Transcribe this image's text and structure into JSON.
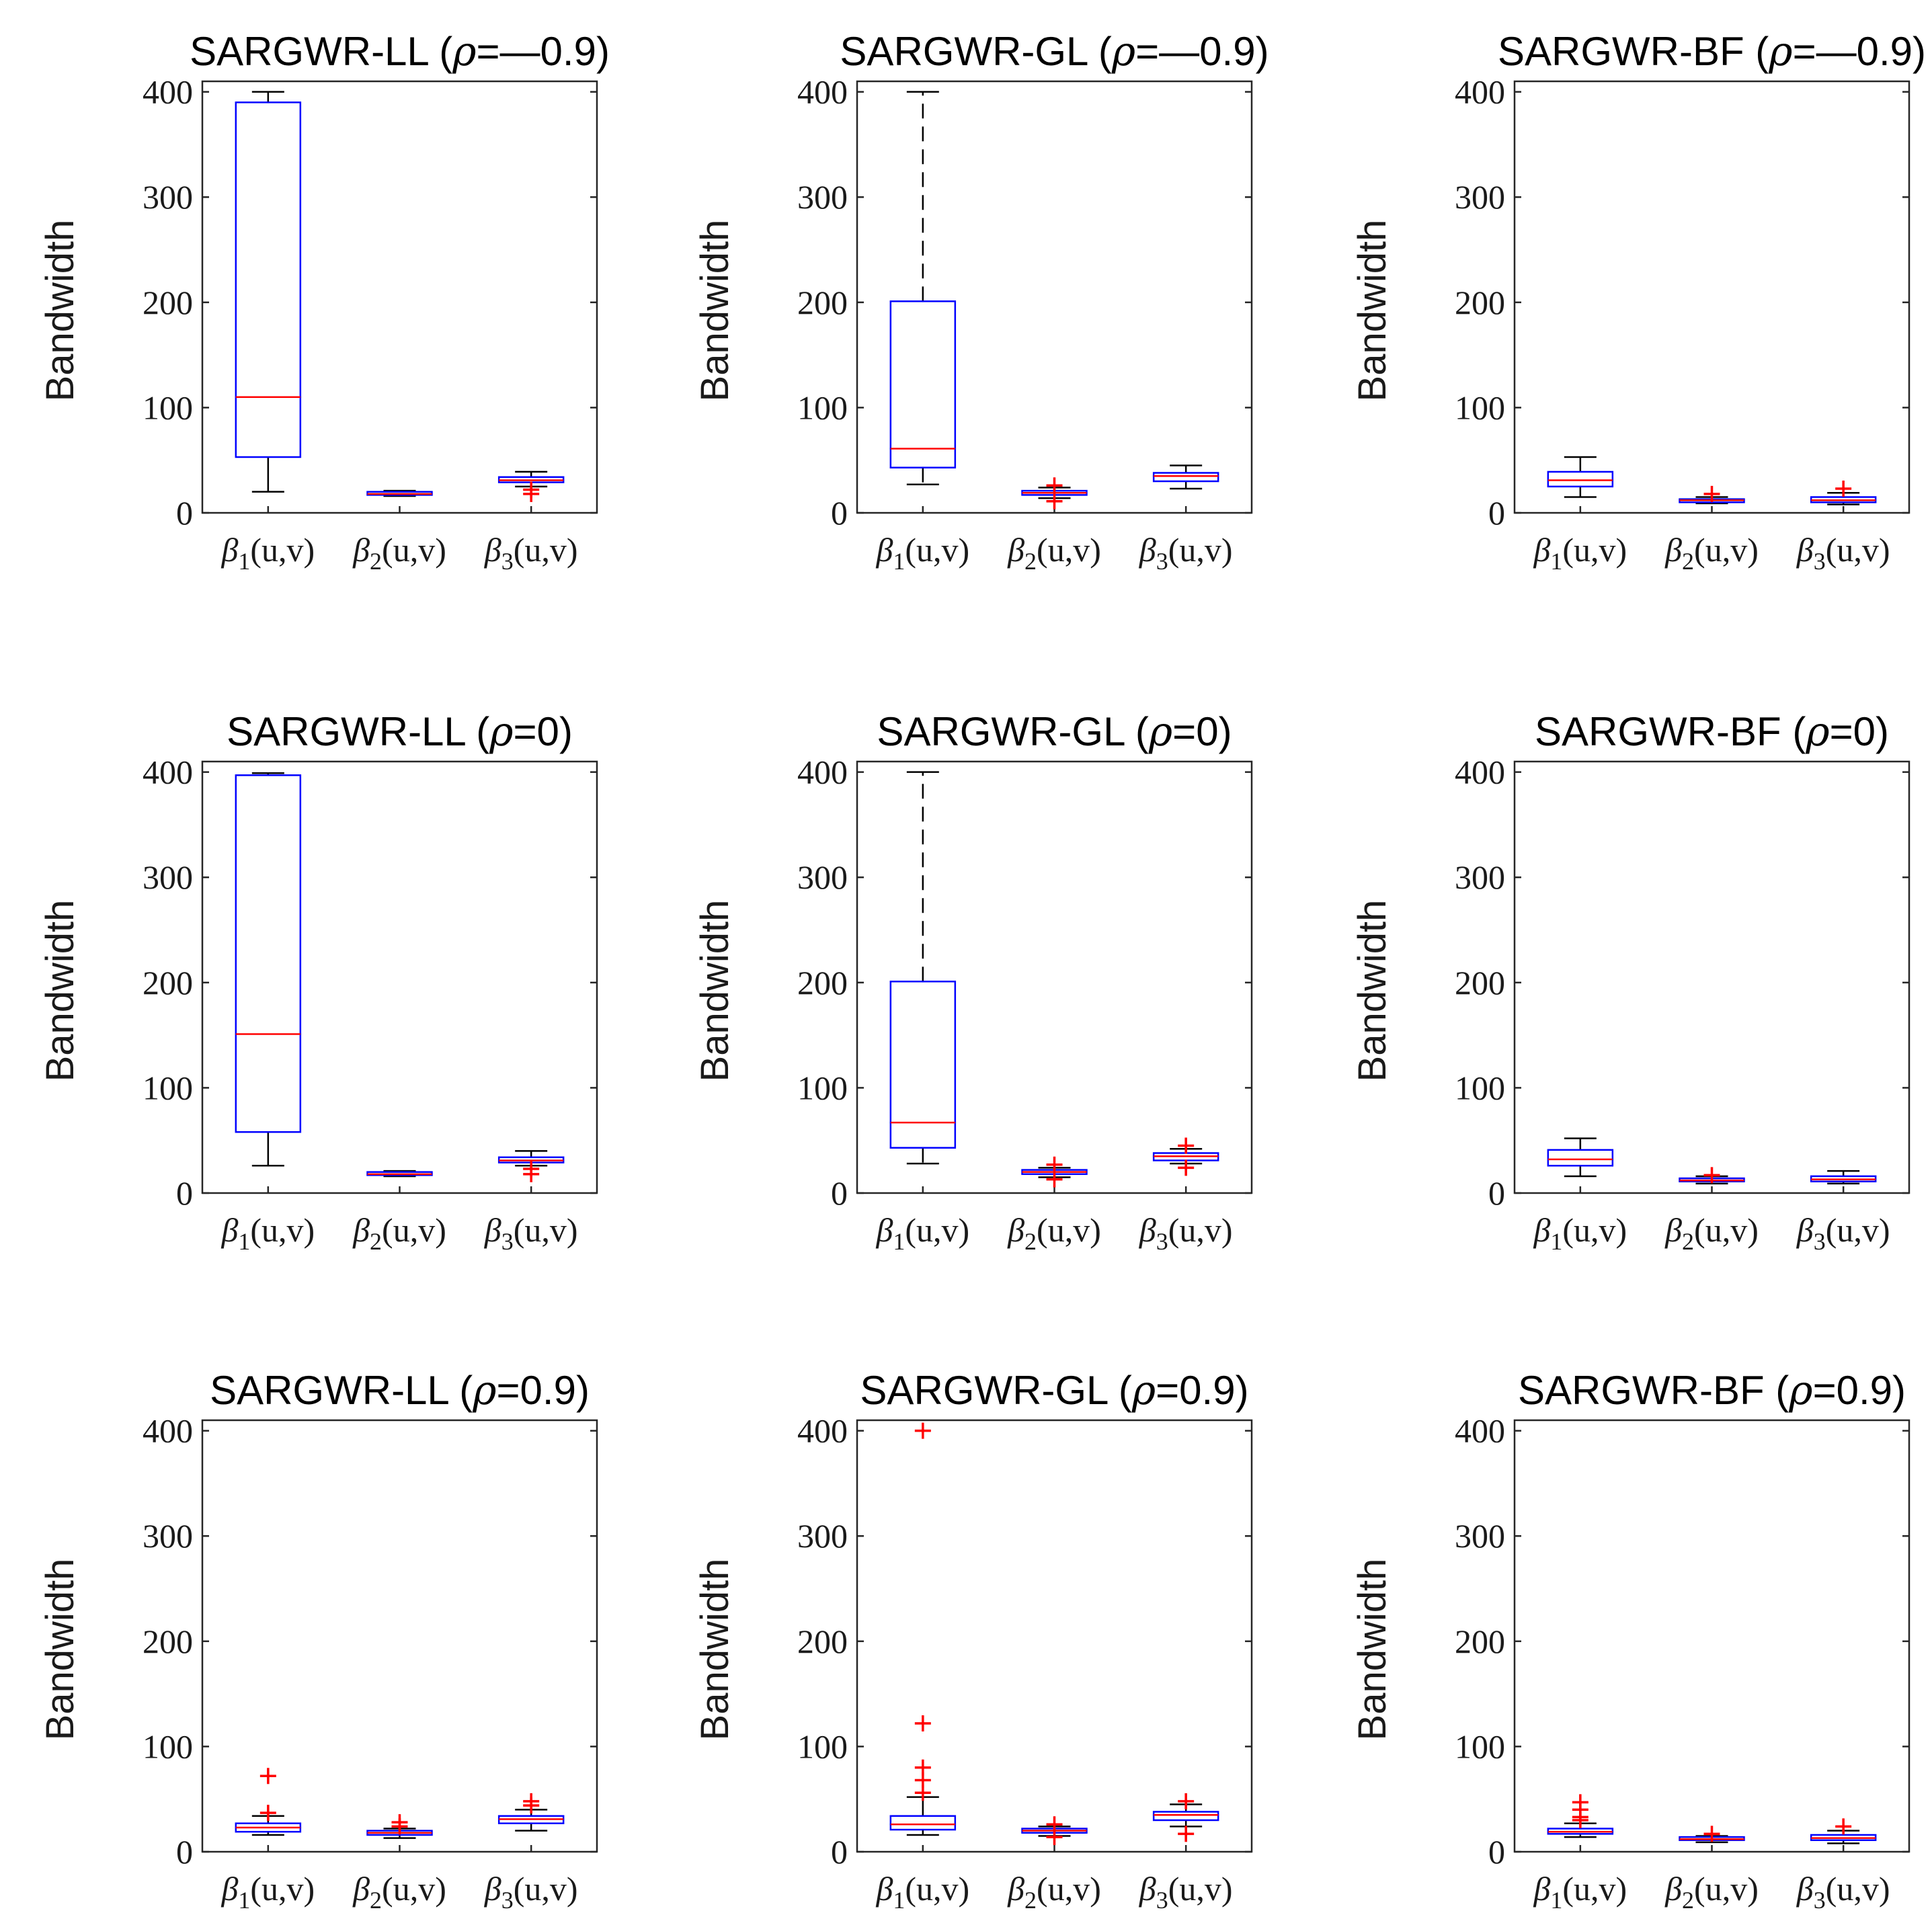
{
  "chart_data": [
    {
      "type": "box",
      "title": {
        "name": "SARGWR-LL",
        "rho": "=—0.9"
      },
      "ylabel": "Bandwidth",
      "ylim": [
        0,
        410
      ],
      "yticks": [
        "0",
        "100",
        "200",
        "300",
        "400"
      ],
      "categories": [
        "β1(u,v)",
        "β2(u,v)",
        "β3(u,v)"
      ],
      "boxes": [
        {
          "whisker_low": 20,
          "q1": 53,
          "median": 110,
          "q3": 390,
          "whisker_high": 400,
          "outliers": []
        },
        {
          "whisker_low": 16,
          "q1": 17,
          "median": 18,
          "q3": 20,
          "whisker_high": 21,
          "outliers": []
        },
        {
          "whisker_low": 25,
          "q1": 29,
          "median": 31,
          "q3": 34,
          "whisker_high": 39,
          "outliers": [
            18,
            22
          ]
        }
      ]
    },
    {
      "type": "box",
      "title": {
        "name": "SARGWR-GL",
        "rho": "=—0.9"
      },
      "ylabel": "Bandwidth",
      "ylim": [
        0,
        410
      ],
      "yticks": [
        "0",
        "100",
        "200",
        "300",
        "400"
      ],
      "categories": [
        "β1(u,v)",
        "β2(u,v)",
        "β3(u,v)"
      ],
      "boxes": [
        {
          "whisker_low": 27,
          "q1": 43,
          "median": 61,
          "q3": 201,
          "whisker_high": 400,
          "outliers": []
        },
        {
          "whisker_low": 14,
          "q1": 17,
          "median": 19,
          "q3": 21,
          "whisker_high": 24,
          "outliers": [
            11,
            26
          ]
        },
        {
          "whisker_low": 23,
          "q1": 30,
          "median": 35,
          "q3": 38,
          "whisker_high": 45,
          "outliers": []
        }
      ]
    },
    {
      "type": "box",
      "title": {
        "name": "SARGWR-BF",
        "rho": "=—0.9"
      },
      "ylabel": "Bandwidth",
      "ylim": [
        0,
        410
      ],
      "yticks": [
        "0",
        "100",
        "200",
        "300",
        "400"
      ],
      "categories": [
        "β1(u,v)",
        "β2(u,v)",
        "β3(u,v)"
      ],
      "boxes": [
        {
          "whisker_low": 15,
          "q1": 25,
          "median": 31,
          "q3": 39,
          "whisker_high": 53,
          "outliers": []
        },
        {
          "whisker_low": 9,
          "q1": 10,
          "median": 12,
          "q3": 13,
          "whisker_high": 15,
          "outliers": [
            18
          ]
        },
        {
          "whisker_low": 8,
          "q1": 10,
          "median": 12,
          "q3": 15,
          "whisker_high": 19,
          "outliers": [
            23
          ]
        }
      ]
    },
    {
      "type": "box",
      "title": {
        "name": "SARGWR-LL",
        "rho": "=0"
      },
      "ylabel": "Bandwidth",
      "ylim": [
        0,
        410
      ],
      "yticks": [
        "0",
        "100",
        "200",
        "300",
        "400"
      ],
      "categories": [
        "β1(u,v)",
        "β2(u,v)",
        "β3(u,v)"
      ],
      "boxes": [
        {
          "whisker_low": 26,
          "q1": 58,
          "median": 151,
          "q3": 397,
          "whisker_high": 399,
          "outliers": []
        },
        {
          "whisker_low": 16,
          "q1": 17,
          "median": 18,
          "q3": 20,
          "whisker_high": 21,
          "outliers": []
        },
        {
          "whisker_low": 26,
          "q1": 29,
          "median": 31,
          "q3": 34,
          "whisker_high": 40,
          "outliers": [
            18,
            23
          ]
        }
      ]
    },
    {
      "type": "box",
      "title": {
        "name": "SARGWR-GL",
        "rho": "=0"
      },
      "ylabel": "Bandwidth",
      "ylim": [
        0,
        410
      ],
      "yticks": [
        "0",
        "100",
        "200",
        "300",
        "400"
      ],
      "categories": [
        "β1(u,v)",
        "β2(u,v)",
        "β3(u,v)"
      ],
      "boxes": [
        {
          "whisker_low": 28,
          "q1": 43,
          "median": 67,
          "q3": 201,
          "whisker_high": 400,
          "outliers": []
        },
        {
          "whisker_low": 15,
          "q1": 18,
          "median": 20,
          "q3": 22,
          "whisker_high": 24,
          "outliers": [
            13,
            27
          ]
        },
        {
          "whisker_low": 28,
          "q1": 31,
          "median": 35,
          "q3": 38,
          "whisker_high": 42,
          "outliers": [
            24,
            45
          ]
        }
      ]
    },
    {
      "type": "box",
      "title": {
        "name": "SARGWR-BF",
        "rho": "=0"
      },
      "ylabel": "Bandwidth",
      "ylim": [
        0,
        410
      ],
      "yticks": [
        "0",
        "100",
        "200",
        "300",
        "400"
      ],
      "categories": [
        "β1(u,v)",
        "β2(u,v)",
        "β3(u,v)"
      ],
      "boxes": [
        {
          "whisker_low": 16,
          "q1": 26,
          "median": 32,
          "q3": 41,
          "whisker_high": 52,
          "outliers": []
        },
        {
          "whisker_low": 9,
          "q1": 11,
          "median": 12,
          "q3": 14,
          "whisker_high": 16,
          "outliers": [
            17
          ]
        },
        {
          "whisker_low": 9,
          "q1": 11,
          "median": 13,
          "q3": 16,
          "whisker_high": 21,
          "outliers": []
        }
      ]
    },
    {
      "type": "box",
      "title": {
        "name": "SARGWR-LL",
        "rho": "=0.9"
      },
      "ylabel": "Bandwidth",
      "ylim": [
        0,
        410
      ],
      "yticks": [
        "0",
        "100",
        "200",
        "300",
        "400"
      ],
      "categories": [
        "β1(u,v)",
        "β2(u,v)",
        "β3(u,v)"
      ],
      "boxes": [
        {
          "whisker_low": 16,
          "q1": 19,
          "median": 23,
          "q3": 27,
          "whisker_high": 34,
          "outliers": [
            37,
            72
          ]
        },
        {
          "whisker_low": 13,
          "q1": 16,
          "median": 18,
          "q3": 20,
          "whisker_high": 22,
          "outliers": [
            24,
            28
          ]
        },
        {
          "whisker_low": 20,
          "q1": 27,
          "median": 31,
          "q3": 34,
          "whisker_high": 40,
          "outliers": [
            44,
            48
          ]
        }
      ]
    },
    {
      "type": "box",
      "title": {
        "name": "SARGWR-GL",
        "rho": "=0.9"
      },
      "ylabel": "Bandwidth",
      "ylim": [
        0,
        410
      ],
      "yticks": [
        "0",
        "100",
        "200",
        "300",
        "400"
      ],
      "categories": [
        "β1(u,v)",
        "β2(u,v)",
        "β3(u,v)"
      ],
      "boxes": [
        {
          "whisker_low": 16,
          "q1": 21,
          "median": 26,
          "q3": 34,
          "whisker_high": 52,
          "outliers": [
            56,
            68,
            80,
            122,
            400
          ]
        },
        {
          "whisker_low": 15,
          "q1": 18,
          "median": 20,
          "q3": 22,
          "whisker_high": 24,
          "outliers": [
            14,
            26
          ]
        },
        {
          "whisker_low": 24,
          "q1": 30,
          "median": 35,
          "q3": 38,
          "whisker_high": 45,
          "outliers": [
            17,
            48
          ]
        }
      ]
    },
    {
      "type": "box",
      "title": {
        "name": "SARGWR-BF",
        "rho": "=0.9"
      },
      "ylabel": "Bandwidth",
      "ylim": [
        0,
        410
      ],
      "yticks": [
        "0",
        "100",
        "200",
        "300",
        "400"
      ],
      "categories": [
        "β1(u,v)",
        "β2(u,v)",
        "β3(u,v)"
      ],
      "boxes": [
        {
          "whisker_low": 14,
          "q1": 17,
          "median": 19,
          "q3": 22,
          "whisker_high": 27,
          "outliers": [
            30,
            33,
            40,
            47
          ]
        },
        {
          "whisker_low": 9,
          "q1": 11,
          "median": 12,
          "q3": 14,
          "whisker_high": 15,
          "outliers": [
            17
          ]
        },
        {
          "whisker_low": 8,
          "q1": 11,
          "median": 13,
          "q3": 16,
          "whisker_high": 20,
          "outliers": [
            24
          ]
        }
      ]
    }
  ],
  "colors": {
    "box": "#0000ff",
    "median": "#ff0000",
    "whisker": "#000000",
    "outlier": "#ff0000",
    "axis": "#262626"
  }
}
